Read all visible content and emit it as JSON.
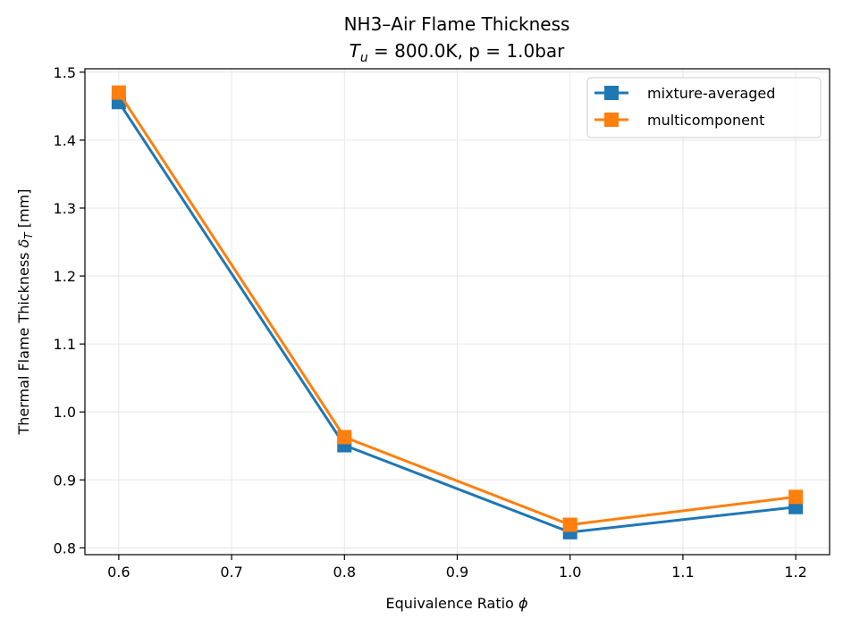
{
  "chart_data": {
    "type": "line",
    "title": "NH3–Air Flame Thickness",
    "subtitle": {
      "var_main": "T",
      "var_sub": "u",
      "rest": " = 800.0K, p = 1.0bar"
    },
    "xlabel": {
      "text": "Equivalence Ratio ",
      "symbol": "ϕ"
    },
    "ylabel": {
      "text": "Thermal Flame Thickness ",
      "symbol": "δ",
      "sub": "T",
      "unit": " [mm]"
    },
    "xlim": [
      0.57,
      1.23
    ],
    "ylim": [
      0.79,
      1.505
    ],
    "xticks": [
      0.6,
      0.7,
      0.8,
      0.9,
      1.0,
      1.1,
      1.2
    ],
    "xtick_labels": [
      "0.6",
      "0.7",
      "0.8",
      "0.9",
      "1.0",
      "1.1",
      "1.2"
    ],
    "yticks": [
      0.8,
      0.9,
      1.0,
      1.1,
      1.2,
      1.3,
      1.4,
      1.5
    ],
    "ytick_labels": [
      "0.8",
      "0.9",
      "1.0",
      "1.1",
      "1.2",
      "1.3",
      "1.4",
      "1.5"
    ],
    "grid": true,
    "legend_position": "top-right",
    "x": [
      0.6,
      0.8,
      1.0,
      1.2
    ],
    "series": [
      {
        "name": "mixture-averaged",
        "color": "#1f77b4",
        "marker": "square",
        "values": [
          1.456,
          0.951,
          0.823,
          0.86
        ]
      },
      {
        "name": "multicomponent",
        "color": "#ff7f0e",
        "marker": "square",
        "values": [
          1.47,
          0.963,
          0.834,
          0.875
        ]
      }
    ]
  }
}
